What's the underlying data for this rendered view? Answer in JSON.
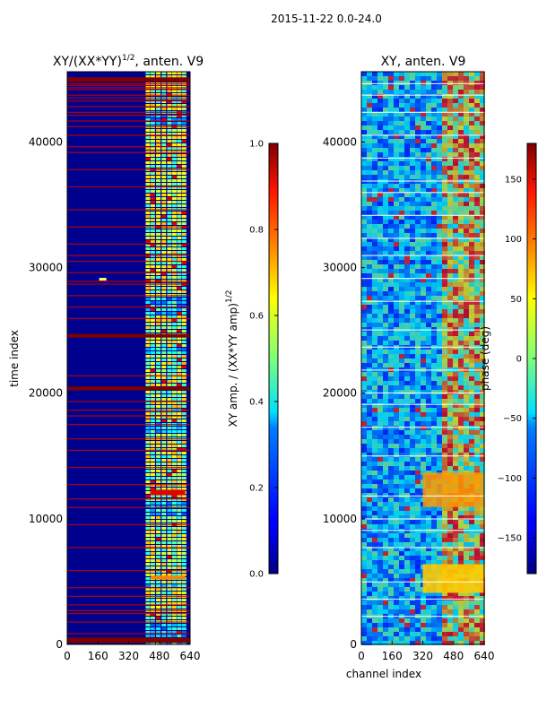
{
  "suptitle": "2015-11-22 0.0-24.0",
  "chart_data": [
    {
      "type": "heatmap",
      "title": "XY/(XX*YY)^1/2, anten. V9",
      "title_main": "XY/(XX*YY)",
      "title_sup": "1/2",
      "title_tail": ", anten. V9",
      "xlabel": "",
      "ylabel": "time index",
      "xlim": [
        0,
        640
      ],
      "ylim": [
        0,
        45600
      ],
      "xticks": [
        "0",
        "160",
        "320",
        "480",
        "640"
      ],
      "xtick_values": [
        0,
        160,
        320,
        480,
        640
      ],
      "yticks": [
        "0",
        "10000",
        "20000",
        "30000",
        "40000"
      ],
      "ytick_values": [
        0,
        10000,
        20000,
        30000,
        40000
      ],
      "colormap": "jet",
      "colorbar": {
        "label": "XY amp. / (XX*YY amp)^1/2",
        "label_main": "XY amp. / (XX*YY amp)",
        "label_sup": "1/2",
        "range": [
          0.0,
          1.0
        ],
        "ticks": [
          "0.0",
          "0.2",
          "0.4",
          "0.6",
          "0.8",
          "1.0"
        ],
        "tick_values": [
          0.0,
          0.2,
          0.4,
          0.6,
          0.8,
          1.0
        ]
      }
    },
    {
      "type": "heatmap",
      "title": "XY, anten. V9",
      "xlabel": "channel index",
      "ylabel": "",
      "xlim": [
        0,
        640
      ],
      "ylim": [
        0,
        45600
      ],
      "xticks": [
        "0",
        "160",
        "320",
        "480",
        "640"
      ],
      "xtick_values": [
        0,
        160,
        320,
        480,
        640
      ],
      "yticks": [
        "0",
        "10000",
        "20000",
        "30000",
        "40000"
      ],
      "ytick_values": [
        0,
        10000,
        20000,
        30000,
        40000
      ],
      "colormap": "jet",
      "colorbar": {
        "label": "phase (deg)",
        "range": [
          -180,
          180
        ],
        "ticks": [
          "−150",
          "−100",
          "−50",
          "0",
          "50",
          "100",
          "150"
        ],
        "tick_values": [
          -150,
          -100,
          -50,
          0,
          50,
          100,
          150
        ]
      }
    }
  ]
}
